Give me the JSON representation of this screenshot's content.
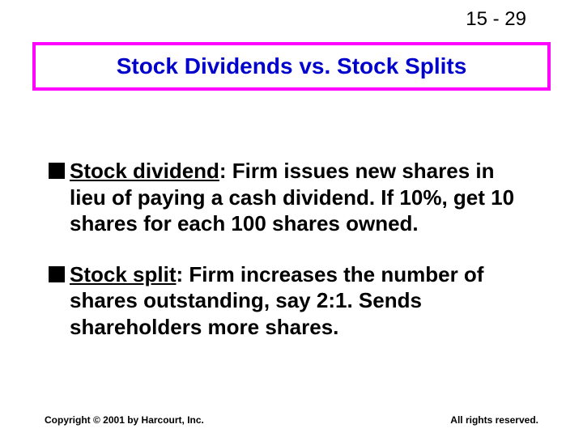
{
  "page_number": "15 - 29",
  "title": "Stock Dividends vs. Stock Splits",
  "title_box": {
    "border_color": "#ff00ff",
    "title_color": "#0000cc",
    "title_fontsize": 28
  },
  "bullets": [
    {
      "label": "Stock dividend",
      "body": ":  Firm issues new shares in lieu of paying a cash dividend.  If 10%, get 10 shares for each 100 shares owned."
    },
    {
      "label": "Stock split",
      "body": ":  Firm increases the number of shares outstanding, say 2:1.  Sends shareholders more shares."
    }
  ],
  "footer": {
    "left": "Copyright © 2001 by Harcourt, Inc.",
    "right": "All rights reserved."
  },
  "styling": {
    "background_color": "#ffffff",
    "bullet_marker_color": "#000000",
    "body_fontsize": 26,
    "body_color": "#000000",
    "footer_fontsize": 12
  }
}
